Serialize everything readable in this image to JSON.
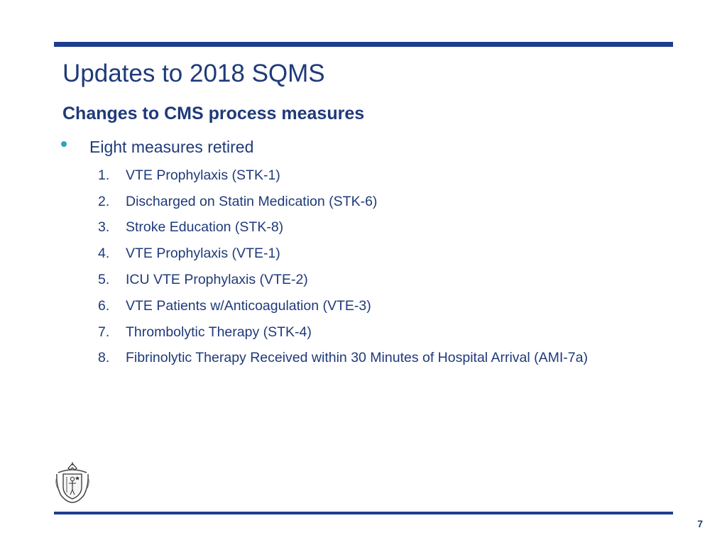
{
  "slide": {
    "title": "Updates to 2018 SQMS",
    "subtitle": "Changes to CMS process measures",
    "bullet": "Eight measures retired",
    "items": [
      {
        "num": "1.",
        "text": "VTE Prophylaxis (STK-1)"
      },
      {
        "num": "2.",
        "text": "Discharged on Statin Medication (STK-6)"
      },
      {
        "num": "3.",
        "text": "Stroke Education (STK-8)"
      },
      {
        "num": "4.",
        "text": "VTE Prophylaxis (VTE-1)"
      },
      {
        "num": "5.",
        "text": "ICU VTE Prophylaxis (VTE-2)"
      },
      {
        "num": "6.",
        "text": "VTE Patients w/Anticoagulation (VTE-3)"
      },
      {
        "num": "7.",
        "text": "Thrombolytic Therapy (STK-4)"
      },
      {
        "num": "8.",
        "text": "Fibrinolytic Therapy Received within 30 Minutes of Hospital Arrival (AMI-7a)"
      }
    ],
    "page_number": "7"
  },
  "icons": {
    "seal": "state-seal-icon"
  },
  "colors": {
    "rule": "#1f3d8f",
    "text": "#1f3a7a",
    "bullet": "#2aa6bd"
  }
}
